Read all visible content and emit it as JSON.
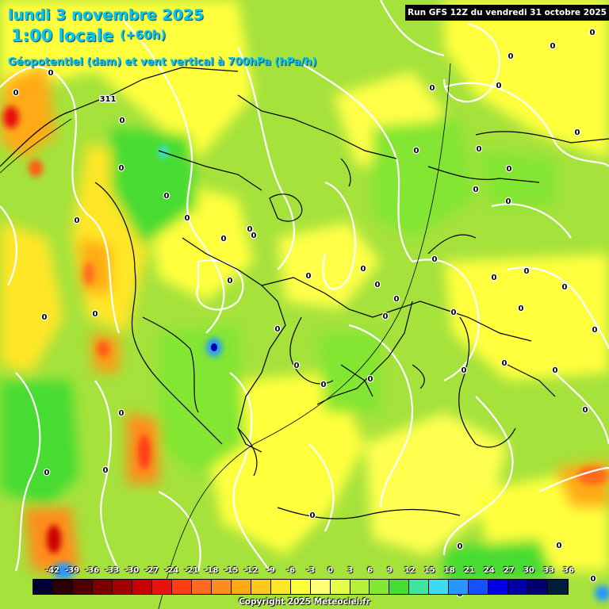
{
  "header": {
    "date_line": "lundi 3 novembre 2025",
    "time_line": "1:00 locale",
    "lead_time": "(+60h)",
    "parameter": "Géopotentiel (dam) et vent vertical à 700hPa (hPa/h)",
    "run": "Run GFS 12Z du vendredi 31 octobre 2025"
  },
  "footer": {
    "copyright": "Copyright 2025 Meteociel.fr"
  },
  "color_scale": {
    "labels": [
      "-42",
      "-39",
      "-36",
      "-33",
      "-30",
      "-27",
      "-24",
      "-21",
      "-18",
      "-15",
      "-12",
      "-9",
      "-6",
      "-3",
      "0",
      "3",
      "6",
      "9",
      "12",
      "15",
      "18",
      "21",
      "24",
      "27",
      "30",
      "33",
      "36"
    ],
    "colors": [
      "#000033",
      "#2a0000",
      "#500000",
      "#7a0000",
      "#a00000",
      "#c80000",
      "#e81010",
      "#ff3c14",
      "#ff6a1e",
      "#ff8c1e",
      "#ffaa14",
      "#ffc81e",
      "#ffe628",
      "#ffff3c",
      "#ffff78",
      "#e6ff46",
      "#b4f03c",
      "#82e632",
      "#46dc32",
      "#3ce6a0",
      "#3cdcf0",
      "#2896ff",
      "#1450ff",
      "#0000e6",
      "#0000aa",
      "#00006e",
      "#001e3c"
    ]
  },
  "map": {
    "contour_labels": [
      "0",
      "0",
      "0",
      "0",
      "0",
      "0",
      "0",
      "0",
      "0",
      "0",
      "0",
      "0",
      "0",
      "0",
      "0",
      "0",
      "0",
      "0",
      "0",
      "0",
      "0",
      "0",
      "0",
      "0",
      "0",
      "0",
      "0",
      "0",
      "0",
      "0",
      "0",
      "0",
      "0",
      "0",
      "0",
      "0",
      "0",
      "0",
      "0",
      "0",
      "0",
      "0",
      "0",
      "0",
      "0",
      "0",
      "0",
      "0",
      "0",
      "0",
      "0",
      "0"
    ],
    "geopotential_labels": [
      "311"
    ]
  }
}
